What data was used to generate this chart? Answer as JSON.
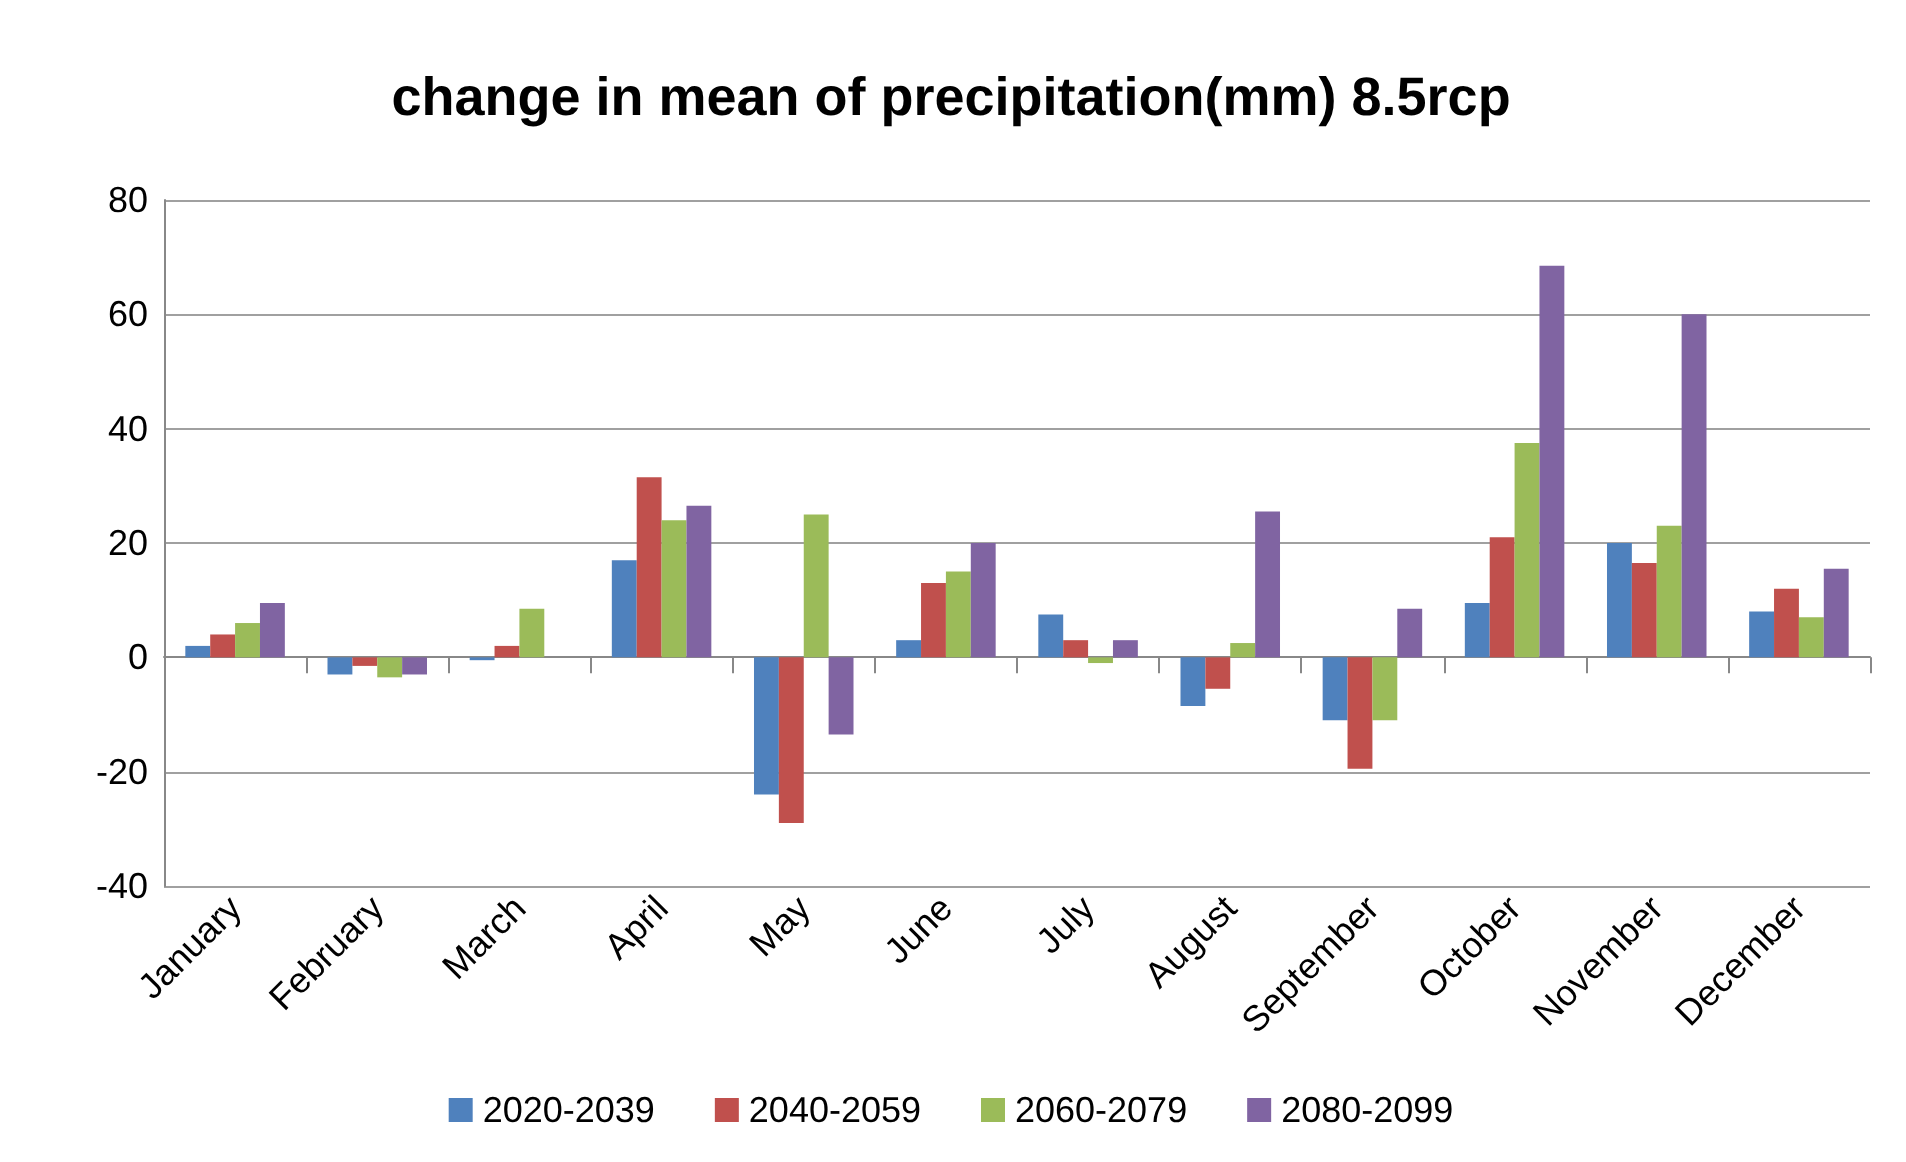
{
  "chart_data": {
    "type": "bar",
    "title": "change in mean of precipitation(mm) 8.5rcp",
    "categories": [
      "January",
      "February",
      "March",
      "April",
      "May",
      "June",
      "July",
      "August",
      "September",
      "October",
      "November",
      "December"
    ],
    "series": [
      {
        "name": "2020-2039",
        "color": "#4f81bd",
        "values": [
          2,
          -3,
          -0.5,
          17,
          -24,
          3,
          7.5,
          -8.5,
          -11,
          9.5,
          20,
          8
        ]
      },
      {
        "name": "2040-2059",
        "color": "#c0504d",
        "values": [
          4,
          -1.5,
          2,
          31.5,
          -29,
          13,
          3,
          -5.5,
          -19.5,
          21,
          16.5,
          12
        ]
      },
      {
        "name": "2060-2079",
        "color": "#9bbb59",
        "values": [
          6,
          -3.5,
          8.5,
          24,
          25,
          15,
          -1,
          2.5,
          -11,
          37.5,
          23,
          7
        ]
      },
      {
        "name": "2080-2099",
        "color": "#8064a2",
        "values": [
          9.5,
          -3,
          0,
          26.5,
          -13.5,
          20,
          3,
          25.5,
          8.5,
          68.5,
          60,
          15.5
        ]
      }
    ],
    "ylim": [
      -40,
      80
    ],
    "yticks": [
      -40,
      -20,
      0,
      20,
      40,
      60,
      80
    ],
    "grid": "y",
    "legend": "bottom"
  }
}
